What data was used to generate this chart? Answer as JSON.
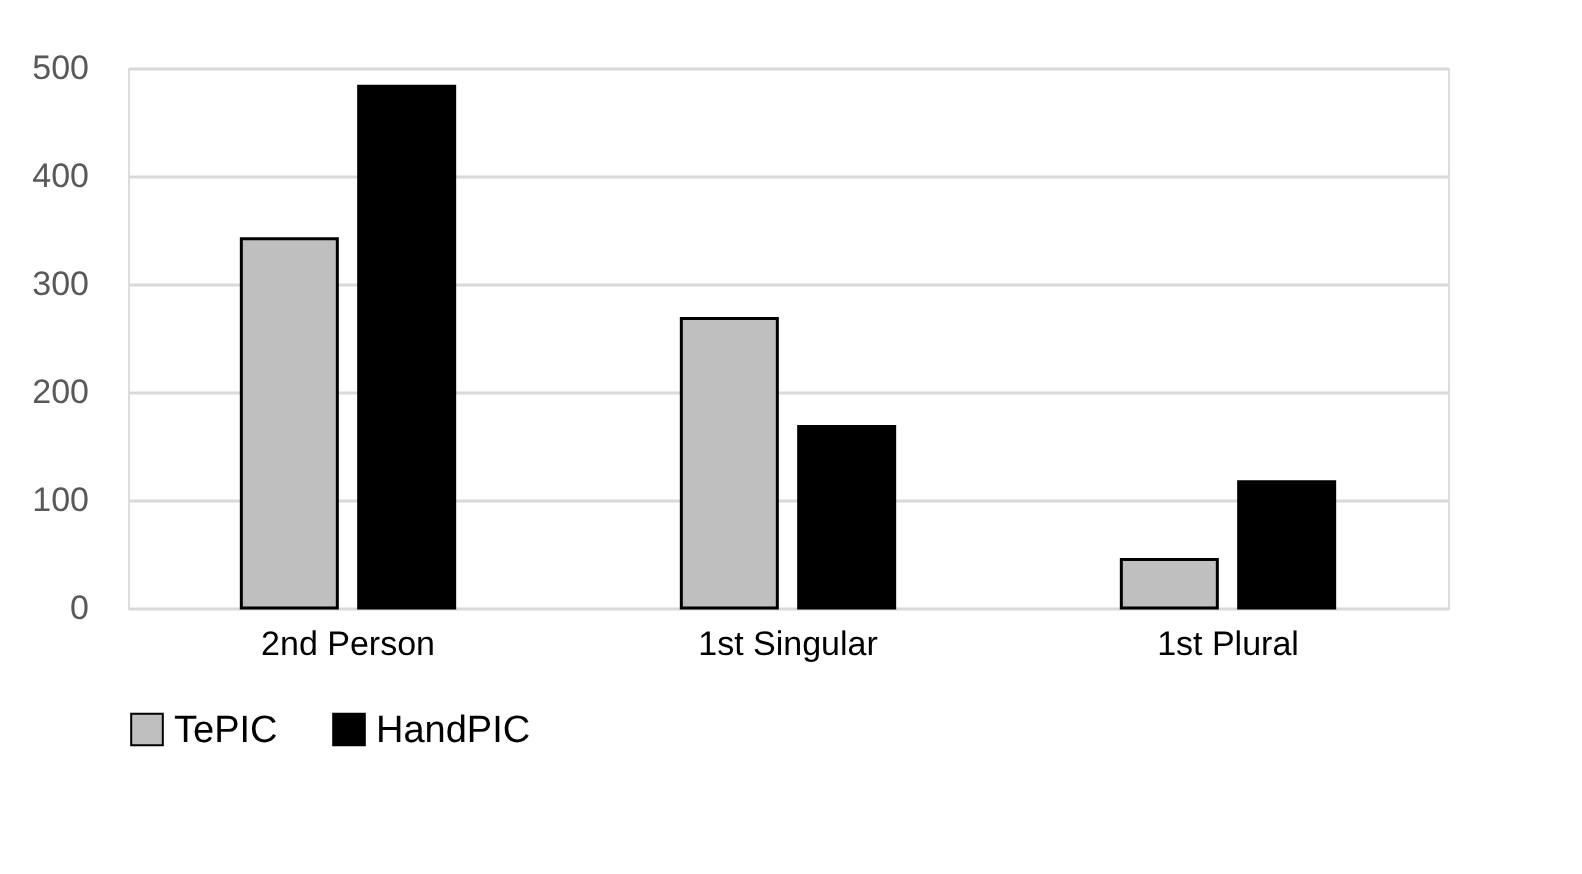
{
  "chart_data": {
    "type": "bar",
    "categories": [
      "2nd Person",
      "1st Singular",
      "1st Plural"
    ],
    "series": [
      {
        "name": "TePIC",
        "color": "#bfbfbf",
        "values": [
          342,
          268,
          45
        ]
      },
      {
        "name": "HandPIC",
        "color": "#000000",
        "values": [
          483,
          168,
          117
        ]
      }
    ],
    "ylim": [
      0,
      500
    ],
    "yticks": [
      0,
      100,
      200,
      300,
      400,
      500
    ],
    "grid": "y",
    "legend": "bottom"
  }
}
